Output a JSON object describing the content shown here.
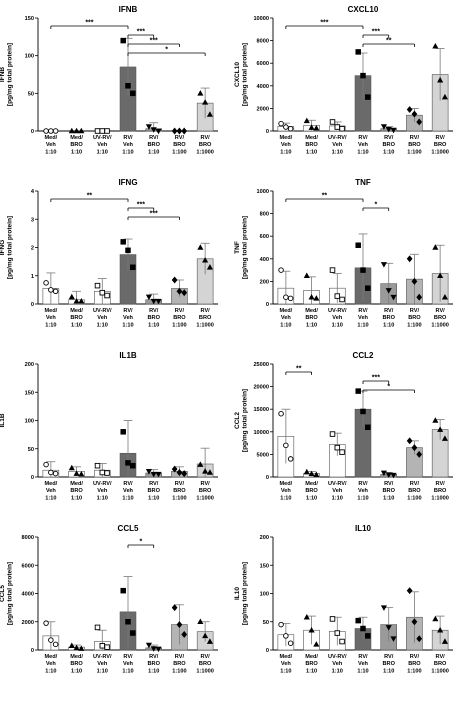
{
  "chart_data": [
    {
      "type": "bar",
      "title": "IFNB",
      "ylabel": "IFNB",
      "ylabel_sub": "[pg/mg total protein]",
      "categories": [
        "Med/\nVeh\n1:10",
        "Med/\nBRO\n1:10",
        "UV-RV/\nVeh\n1:10",
        "RV/\nVeh\n1:10",
        "RV/\nBRO\n1:10",
        "RV/\nBRO\n1:100",
        "RV/\nBRO\n1:1000"
      ],
      "values": [
        0,
        0,
        0,
        85,
        3,
        0,
        37
      ],
      "errors": [
        0,
        0,
        0,
        38,
        8,
        0,
        20
      ],
      "points": [
        [
          0,
          0,
          0
        ],
        [
          0,
          0,
          0
        ],
        [
          0,
          0,
          0
        ],
        [
          120,
          60,
          50
        ],
        [
          6,
          2,
          0
        ],
        [
          0,
          0,
          0
        ],
        [
          50,
          38,
          22
        ]
      ],
      "ylim": [
        0,
        150
      ],
      "yticks": [
        "0",
        "50",
        "100",
        "150"
      ],
      "significance": [
        {
          "from": 0,
          "to": 3,
          "label": "***"
        },
        {
          "from": 3,
          "to": 4,
          "label": "***"
        },
        {
          "from": 3,
          "to": 5,
          "label": "***"
        },
        {
          "from": 3,
          "to": 6,
          "label": "*"
        }
      ]
    },
    {
      "type": "bar",
      "title": "CXCL10",
      "ylabel": "CXCL10",
      "ylabel_sub": "[pg/mg total protein]",
      "categories": [
        "Med/\nVeh\n1:10",
        "Med/\nBRO\n1:10",
        "UV-RV/\nVeh\n1:10",
        "RV/\nVeh\n1:10",
        "RV/\nBRO\n1:10",
        "RV/\nBRO\n1:100",
        "RV/\nBRO\n1:1000"
      ],
      "values": [
        400,
        500,
        450,
        4900,
        200,
        1400,
        5000
      ],
      "errors": [
        300,
        450,
        350,
        2000,
        200,
        600,
        2300
      ],
      "points": [
        [
          650,
          350,
          200
        ],
        [
          900,
          300,
          250
        ],
        [
          800,
          350,
          200
        ],
        [
          7000,
          4900,
          3000
        ],
        [
          400,
          150,
          80
        ],
        [
          1900,
          1500,
          800
        ],
        [
          7500,
          4500,
          3000
        ]
      ],
      "ylim": [
        0,
        10000
      ],
      "yticks": [
        "0",
        "2000",
        "4000",
        "6000",
        "8000",
        "10000"
      ],
      "significance": [
        {
          "from": 0,
          "to": 3,
          "label": "***"
        },
        {
          "from": 3,
          "to": 4,
          "label": "***"
        },
        {
          "from": 3,
          "to": 5,
          "label": "**"
        }
      ]
    },
    {
      "type": "bar",
      "title": "IFNG",
      "ylabel": "IFNG",
      "ylabel_sub": "[pg/mg total protein]",
      "categories": [
        "Med/\nVeh\n1:10",
        "Med/\nBRO\n1:10",
        "UV-RV/\nVeh\n1:10",
        "RV/\nVeh\n1:10",
        "RV/\nBRO\n1:10",
        "RV/\nBRO\n1:100",
        "RV/\nBRO\n1:1000"
      ],
      "values": [
        0.55,
        0.15,
        0.45,
        1.75,
        0.15,
        0.55,
        1.6
      ],
      "errors": [
        0.55,
        0.3,
        0.45,
        0.55,
        0.2,
        0.3,
        0.55
      ],
      "points": [
        [
          0.75,
          0.5,
          0.45
        ],
        [
          0.25,
          0.1,
          0.1
        ],
        [
          0.65,
          0.4,
          0.3
        ],
        [
          2.2,
          1.9,
          1.3
        ],
        [
          0.25,
          0.1,
          0.1
        ],
        [
          0.85,
          0.45,
          0.4
        ],
        [
          2.0,
          1.55,
          1.3
        ]
      ],
      "ylim": [
        0,
        4
      ],
      "yticks": [
        "0",
        "1",
        "2",
        "3",
        "4"
      ],
      "significance": [
        {
          "from": 0,
          "to": 3,
          "label": "**"
        },
        {
          "from": 3,
          "to": 4,
          "label": "***"
        },
        {
          "from": 3,
          "to": 5,
          "label": "***"
        }
      ]
    },
    {
      "type": "bar",
      "title": "TNF",
      "ylabel": "TNF",
      "ylabel_sub": "[pg/mg total protein]",
      "categories": [
        "Med/\nVeh\n1:10",
        "Med/\nBRO\n1:10",
        "UV-RV/\nVeh\n1:10",
        "RV/\nVeh\n1:10",
        "RV/\nBRO\n1:10",
        "RV/\nBRO\n1:100",
        "RV/\nBRO\n1:1000"
      ],
      "values": [
        140,
        120,
        140,
        320,
        180,
        220,
        270
      ],
      "errors": [
        150,
        120,
        130,
        300,
        180,
        220,
        250
      ],
      "points": [
        [
          300,
          60,
          50
        ],
        [
          250,
          60,
          50
        ],
        [
          300,
          70,
          40
        ],
        [
          520,
          300,
          140
        ],
        [
          350,
          120,
          60
        ],
        [
          400,
          200,
          60
        ],
        [
          500,
          250,
          60
        ]
      ],
      "ylim": [
        0,
        1000
      ],
      "yticks": [
        "0",
        "200",
        "400",
        "600",
        "800",
        "1000"
      ],
      "significance": [
        {
          "from": 0,
          "to": 3,
          "label": "**"
        },
        {
          "from": 3,
          "to": 4,
          "label": "*"
        }
      ]
    },
    {
      "type": "bar",
      "title": "IL1B",
      "ylabel": "IL1B",
      "ylabel_sub": "",
      "categories": [
        "Med/\nVeh\n1:10",
        "Med/\nBRO\n1:10",
        "UV-RV/\nVeh\n1:10",
        "RV/\nVeh\n1:10",
        "RV/\nBRO\n1:10",
        "RV/\nBRO\n1:100",
        "RV/\nBRO\n1:1000"
      ],
      "values": [
        12,
        10,
        12,
        42,
        7,
        10,
        23
      ],
      "errors": [
        15,
        8,
        12,
        58,
        6,
        8,
        28
      ],
      "points": [
        [
          22,
          8,
          6
        ],
        [
          16,
          6,
          5
        ],
        [
          20,
          8,
          7
        ],
        [
          80,
          25,
          20
        ],
        [
          10,
          5,
          5
        ],
        [
          14,
          8,
          6
        ],
        [
          22,
          10,
          8
        ]
      ],
      "ylim": [
        0,
        200
      ],
      "yticks": [
        "0",
        "50",
        "100",
        "150",
        "200"
      ],
      "significance": []
    },
    {
      "type": "bar",
      "title": "CCL2",
      "ylabel": "CCL2",
      "ylabel_sub": "[pg/mg total protein]",
      "categories": [
        "Med/\nVeh\n1:10",
        "Med/\nBRO\n1:10",
        "UV-RV/\nVeh\n1:10",
        "RV/\nVeh\n1:10",
        "RV/\nBRO\n1:10",
        "RV/\nBRO\n1:100",
        "RV/\nBRO\n1:1000"
      ],
      "values": [
        9000,
        800,
        7200,
        15000,
        600,
        6500,
        10500
      ],
      "errors": [
        6000,
        400,
        2500,
        4000,
        400,
        1500,
        2200
      ],
      "points": [
        [
          14000,
          7000,
          4000
        ],
        [
          1100,
          700,
          500
        ],
        [
          9500,
          6500,
          5500
        ],
        [
          19000,
          14500,
          11000
        ],
        [
          900,
          500,
          400
        ],
        [
          8000,
          6500,
          5000
        ],
        [
          12500,
          10500,
          8500
        ]
      ],
      "ylim": [
        0,
        25000
      ],
      "yticks": [
        "0",
        "5000",
        "10000",
        "15000",
        "20000",
        "25000"
      ],
      "significance": [
        {
          "from": 0,
          "to": 1,
          "label": "**"
        },
        {
          "from": 3,
          "to": 4,
          "label": "***"
        },
        {
          "from": 3,
          "to": 5,
          "label": "*"
        }
      ]
    },
    {
      "type": "bar",
      "title": "CCL5",
      "ylabel": "CCL5",
      "ylabel_sub": "[pg/mg total protein]",
      "categories": [
        "Med/\nVeh\n1:10",
        "Med/\nBRO\n1:10",
        "UV-RV/\nVeh\n1:10",
        "RV/\nVeh\n1:10",
        "RV/\nBRO\n1:10",
        "RV/\nBRO\n1:100",
        "RV/\nBRO\n1:1000"
      ],
      "values": [
        1000,
        200,
        600,
        2700,
        150,
        1800,
        1300
      ],
      "errors": [
        1000,
        150,
        800,
        2500,
        200,
        1400,
        700
      ],
      "points": [
        [
          1900,
          700,
          400
        ],
        [
          300,
          150,
          100
        ],
        [
          1600,
          300,
          200
        ],
        [
          4200,
          2000,
          1200
        ],
        [
          350,
          100,
          80
        ],
        [
          3000,
          1800,
          1100
        ],
        [
          2000,
          1000,
          600
        ]
      ],
      "ylim": [
        0,
        8000
      ],
      "yticks": [
        "0",
        "2000",
        "4000",
        "6000",
        "8000"
      ],
      "significance": [
        {
          "from": 3,
          "to": 4,
          "label": "*"
        }
      ]
    },
    {
      "type": "bar",
      "title": "IL10",
      "ylabel": "IL10",
      "ylabel_sub": "[pg/mg total protein]",
      "categories": [
        "Med/\nVeh\n1:10",
        "Med/\nBRO\n1:10",
        "UV-RV/\nVeh\n1:10",
        "RV/\nVeh\n1:10",
        "RV/\nBRO\n1:10",
        "RV/\nBRO\n1:100",
        "RV/\nBRO\n1:1000"
      ],
      "values": [
        27,
        35,
        33,
        38,
        45,
        58,
        35
      ],
      "errors": [
        20,
        25,
        25,
        20,
        30,
        45,
        25
      ],
      "points": [
        [
          45,
          25,
          12
        ],
        [
          58,
          35,
          10
        ],
        [
          55,
          30,
          15
        ],
        [
          52,
          38,
          25
        ],
        [
          75,
          40,
          20
        ],
        [
          105,
          50,
          20
        ],
        [
          55,
          35,
          15
        ]
      ],
      "ylim": [
        0,
        200
      ],
      "yticks": [
        "0",
        "50",
        "100",
        "150",
        "200"
      ],
      "significance": []
    }
  ],
  "colors": {
    "bar_fills": [
      "#ffffff",
      "#ffffff",
      "#ffffff",
      "#6a6a6a",
      "#9a9a9a",
      "#b4b4b4",
      "#d4d4d4"
    ],
    "axis": "#000000",
    "error_bar": "#7a7a7a",
    "marker": "#000000"
  },
  "markers": [
    "circle-open",
    "triangle-filled",
    "square-open",
    "square-filled",
    "triangle-down-filled",
    "diamond-filled",
    "triangle-filled"
  ]
}
